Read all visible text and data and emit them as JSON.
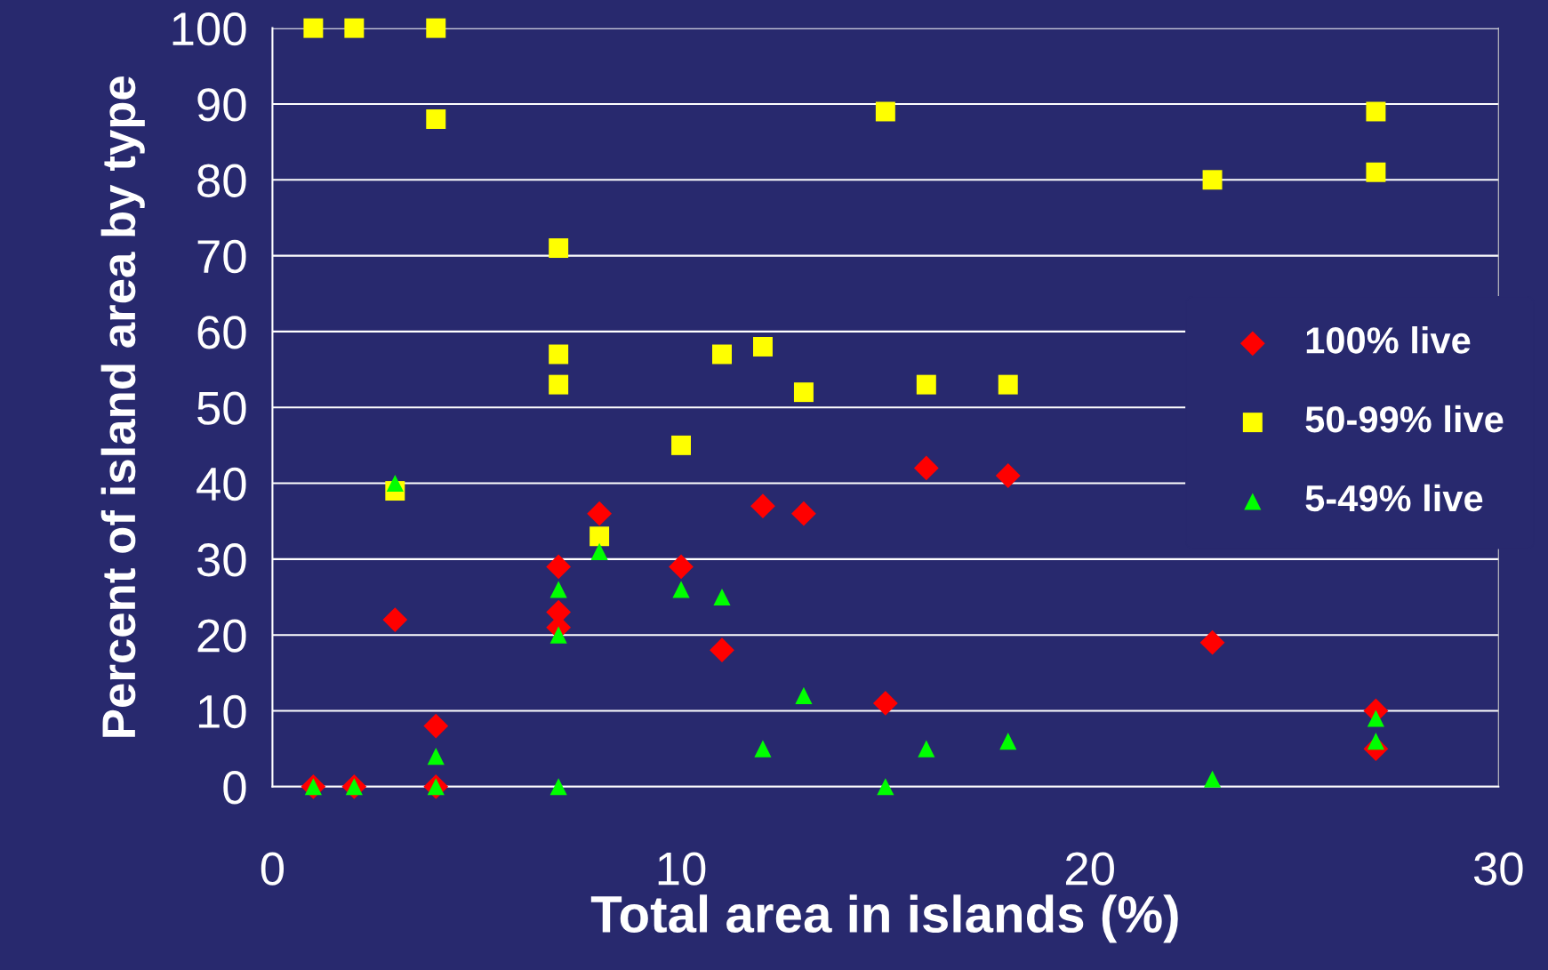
{
  "chart_data": {
    "type": "scatter",
    "xlabel": "Total area in islands (%)",
    "ylabel": "Percent of island area by type",
    "xlim": [
      0,
      30
    ],
    "xticks": [
      0,
      10,
      20,
      30
    ],
    "ylim": [
      0,
      100
    ],
    "yticks": [
      0,
      10,
      20,
      30,
      40,
      50,
      60,
      70,
      80,
      90,
      100
    ],
    "grid": "y",
    "legend": "right",
    "series": [
      {
        "name": "100% live",
        "color": "#ff0000",
        "marker": "diamond",
        "x": [
          1,
          2,
          3,
          4,
          4,
          7,
          7,
          7,
          8,
          10,
          11,
          12,
          13,
          15,
          16,
          18,
          23,
          27,
          27
        ],
        "values": [
          0,
          0,
          22,
          8,
          0,
          29,
          23,
          21,
          36,
          29,
          18,
          37,
          36,
          11,
          42,
          41,
          19,
          10,
          5
        ]
      },
      {
        "name": "50-99% live",
        "color": "#ffff00",
        "marker": "square",
        "x": [
          1,
          2,
          3,
          4,
          4,
          7,
          7,
          7,
          8,
          10,
          11,
          12,
          13,
          15,
          16,
          18,
          23,
          27,
          27
        ],
        "values": [
          100,
          100,
          39,
          100,
          88,
          71,
          57,
          53,
          33,
          45,
          57,
          58,
          52,
          89,
          53,
          53,
          80,
          89,
          81
        ]
      },
      {
        "name": "5-49% live",
        "color": "#00ff00",
        "marker": "triangle",
        "x": [
          1,
          2,
          3,
          4,
          4,
          7,
          7,
          7,
          8,
          10,
          11,
          12,
          13,
          15,
          16,
          18,
          23,
          27,
          27
        ],
        "values": [
          0,
          0,
          40,
          4,
          0,
          26,
          20,
          0,
          31,
          26,
          25,
          5,
          12,
          0,
          5,
          6,
          1,
          9,
          6
        ]
      }
    ]
  }
}
